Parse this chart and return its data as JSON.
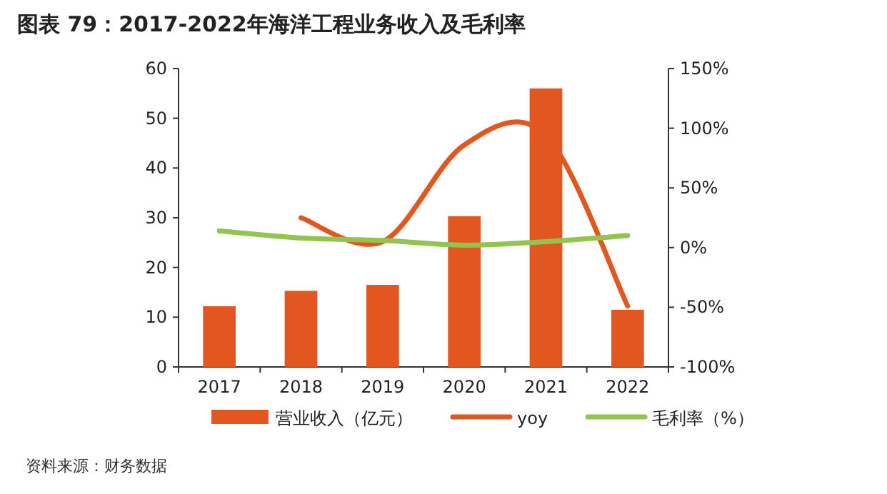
{
  "chart_data": {
    "type": "bar",
    "title": "图表 79：2017-2022年海洋工程业务收入及毛利率",
    "categories": [
      "2017",
      "2018",
      "2019",
      "2020",
      "2021",
      "2022"
    ],
    "series": [
      {
        "name": "营业收入（亿元）",
        "color": "#e2561f",
        "values": [
          12.2,
          15.3,
          16.5,
          30.3,
          56,
          11.5
        ]
      },
      {
        "name": "yoy",
        "type": "line",
        "axis": "y2",
        "color": "#e2561f",
        "values": [
          null,
          25,
          5,
          86,
          94,
          -49
        ]
      },
      {
        "name": "毛利率（%）",
        "type": "line",
        "axis": "y2",
        "color": "#92c550",
        "values": [
          14,
          8,
          6,
          2,
          5,
          10
        ]
      }
    ],
    "ylim": [
      0,
      60
    ],
    "yticks": [
      0,
      10,
      20,
      30,
      40,
      50,
      60
    ],
    "y2lim": [
      -100,
      150
    ],
    "y2ticks": [
      {
        "value": -100,
        "label": "-100%"
      },
      {
        "value": -50,
        "label": "-50%"
      },
      {
        "value": 0,
        "label": "0%"
      },
      {
        "value": 50,
        "label": "50%"
      },
      {
        "value": 100,
        "label": "100%"
      },
      {
        "value": 150,
        "label": "150%"
      }
    ],
    "legend": "bottom",
    "annotations": [
      "资料来源：财务数据"
    ]
  }
}
